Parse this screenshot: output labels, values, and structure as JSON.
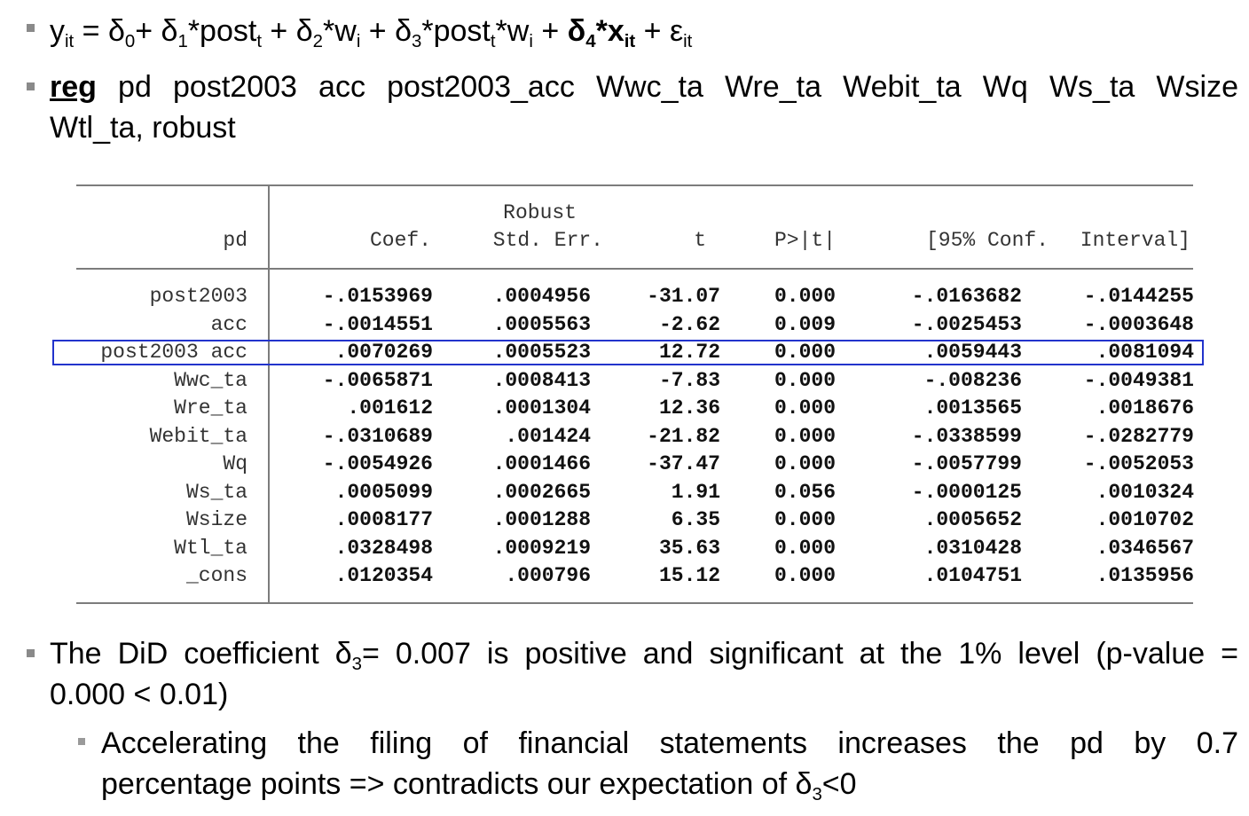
{
  "equation": {
    "parts": [
      "y",
      "it",
      " = δ",
      "0",
      "+ δ",
      "1",
      "*post",
      "t",
      " + δ",
      "2",
      "*w",
      "i",
      " + δ",
      "3",
      "*post",
      "t",
      "*w",
      "i",
      " + ",
      "δ",
      "4",
      "*x",
      "it",
      " + ε",
      "it"
    ]
  },
  "command": {
    "keyword": "reg",
    "line1": " pd post2003 acc post2003_acc Wwc_ta Wre_ta Webit_ta Wq Ws_ta Wsize",
    "line2": "Wtl_ta, robust"
  },
  "regression_table": {
    "dependent_var": "pd",
    "header_top": "Robust",
    "columns": [
      "Coef.",
      "Std. Err.",
      "t",
      "P>|t|",
      "[95% Conf.",
      "Interval]"
    ],
    "highlight_row": 2,
    "highlight_color": "#2233cc",
    "rows": [
      {
        "var": "post2003",
        "coef": "-.0153969",
        "se": ".0004956",
        "t": "-31.07",
        "p": "0.000",
        "lo": "-.0163682",
        "hi": "-.0144255"
      },
      {
        "var": "acc",
        "coef": "-.0014551",
        "se": ".0005563",
        "t": "-2.62",
        "p": "0.009",
        "lo": "-.0025453",
        "hi": "-.0003648"
      },
      {
        "var": "post2003 acc",
        "coef": ".0070269",
        "se": ".0005523",
        "t": "12.72",
        "p": "0.000",
        "lo": ".0059443",
        "hi": ".0081094"
      },
      {
        "var": "Wwc_ta",
        "coef": "-.0065871",
        "se": ".0008413",
        "t": "-7.83",
        "p": "0.000",
        "lo": "-.008236",
        "hi": "-.0049381"
      },
      {
        "var": "Wre_ta",
        "coef": ".001612",
        "se": ".0001304",
        "t": "12.36",
        "p": "0.000",
        "lo": ".0013565",
        "hi": ".0018676"
      },
      {
        "var": "Webit_ta",
        "coef": "-.0310689",
        "se": ".001424",
        "t": "-21.82",
        "p": "0.000",
        "lo": "-.0338599",
        "hi": "-.0282779"
      },
      {
        "var": "Wq",
        "coef": "-.0054926",
        "se": ".0001466",
        "t": "-37.47",
        "p": "0.000",
        "lo": "-.0057799",
        "hi": "-.0052053"
      },
      {
        "var": "Ws_ta",
        "coef": ".0005099",
        "se": ".0002665",
        "t": "1.91",
        "p": "0.056",
        "lo": "-.0000125",
        "hi": ".0010324"
      },
      {
        "var": "Wsize",
        "coef": ".0008177",
        "se": ".0001288",
        "t": "6.35",
        "p": "0.000",
        "lo": ".0005652",
        "hi": ".0010702"
      },
      {
        "var": "Wtl_ta",
        "coef": ".0328498",
        "se": ".0009219",
        "t": "35.63",
        "p": "0.000",
        "lo": ".0310428",
        "hi": ".0346567"
      },
      {
        "var": "_cons",
        "coef": ".0120354",
        "se": ".000796",
        "t": "15.12",
        "p": "0.000",
        "lo": ".0104751",
        "hi": ".0135956"
      }
    ]
  },
  "conclusion": {
    "line1_a": "The DiD coefficient δ",
    "line1_sub": "3",
    "line1_b": "= 0.007 is positive and significant at the 1% level (p-value =",
    "line2": "0.000 < 0.01)",
    "sub_line1": "Accelerating the filing of financial statements increases the pd by 0.7",
    "sub_line2_a": "percentage points => contradicts our expectation of δ",
    "sub_line2_sub": "3",
    "sub_line2_b": "<0"
  }
}
